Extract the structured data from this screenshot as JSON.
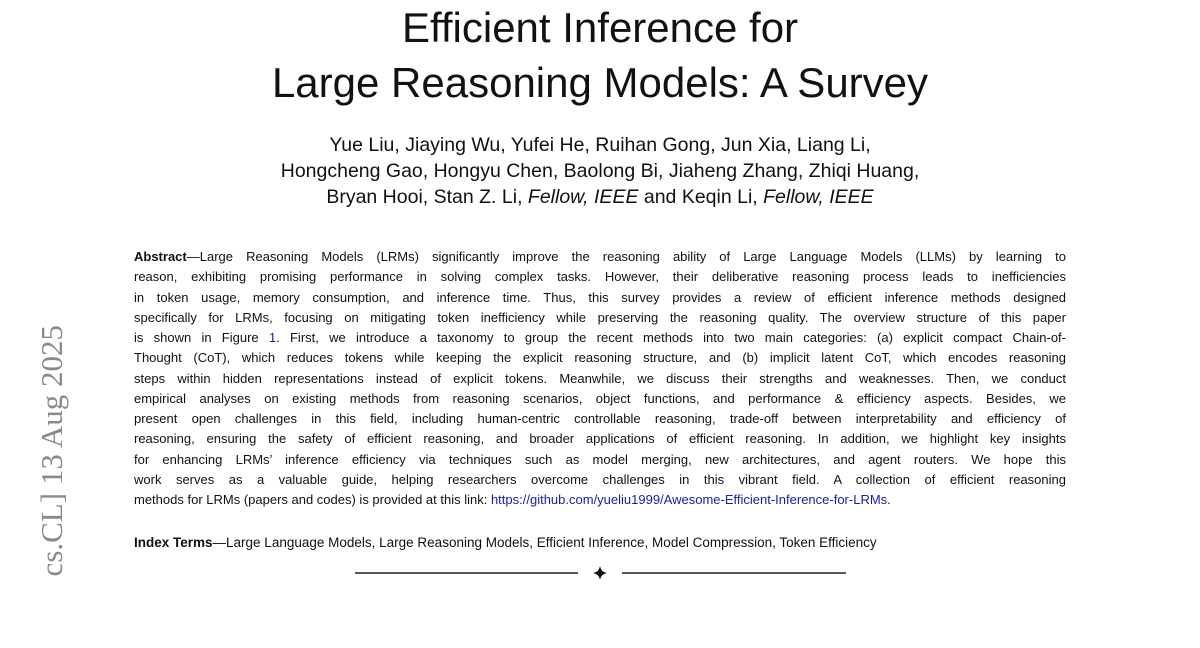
{
  "side_stamp": "cs.CL]  13 Aug 2025",
  "title": {
    "lines": [
      "Efficient Inference for",
      "Large Reasoning Models: A Survey"
    ]
  },
  "authors": {
    "lines": [
      "Yue Liu, Jiaying Wu, Yufei He, Ruihan Gong, Jun Xia, Liang Li,",
      "Hongcheng Gao, Hongyu Chen, Baolong Bi, Jiaheng Zhang, Zhiqi Huang,"
    ],
    "last_line": [
      {
        "text": "Bryan Hooi,  Stan Z. Li, "
      },
      {
        "text": "Fellow, IEEE",
        "italic": true
      },
      {
        "text": " and Keqin Li, "
      },
      {
        "text": "Fellow, IEEE",
        "italic": true
      }
    ]
  },
  "abstract": {
    "label": "Abstract",
    "lines": [
      {
        "text": "—Large Reasoning Models (LRMs) significantly improve the reasoning ability of Large Language Models (LLMs) by learning to"
      },
      {
        "text": "reason, exhibiting promising performance in solving complex tasks. However, their deliberative reasoning process leads to inefficiencies"
      },
      {
        "text": "in token usage, memory consumption, and inference time. Thus, this survey provides a review of efficient inference methods designed"
      },
      {
        "text": "specifically for LRMs, focusing on mitigating token inefficiency while preserving the reasoning quality. The overview structure of this paper"
      },
      {
        "text": "is shown in Figure ",
        "ref": "1",
        "text_after": ". First, we introduce a taxonomy to group the recent methods into two main categories: (a) explicit compact Chain-of-"
      },
      {
        "text": "Thought (CoT), which reduces tokens while keeping the explicit reasoning structure, and (b) implicit latent CoT, which encodes reasoning"
      },
      {
        "text": "steps within hidden representations instead of explicit tokens. Meanwhile, we discuss their strengths and weaknesses. Then, we conduct"
      },
      {
        "text": "empirical analyses on existing methods from reasoning scenarios, object functions, and performance & efficiency aspects. Besides, we"
      },
      {
        "text": "present open challenges in this field, including human-centric controllable reasoning, trade-off between interpretability and efficiency of"
      },
      {
        "text": "reasoning, ensuring the safety of efficient reasoning, and broader applications of efficient reasoning. In addition, we highlight key insights"
      },
      {
        "text": "for enhancing LRMs’ inference efficiency via techniques such as model merging, new architectures, and agent routers. We hope this"
      },
      {
        "text": "work serves as a valuable guide, helping researchers overcome challenges in this vibrant field. A collection of efficient reasoning"
      },
      {
        "text": "methods for LRMs (papers and codes) is provided at this link: ",
        "link": "https://github.com/yueliu1999/Awesome-Efficient-Inference-for-LRMs",
        "text_after": "."
      }
    ]
  },
  "index_terms": {
    "label": "Index Terms",
    "text": "—Large Language Models, Large Reasoning Models, Efficient Inference, Model Compression, Token Efficiency"
  }
}
